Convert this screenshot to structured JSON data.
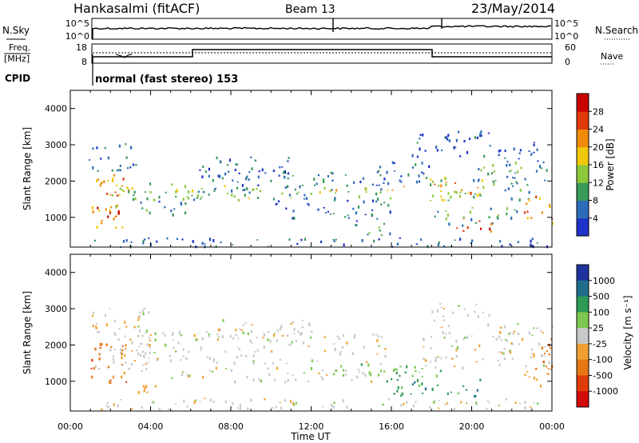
{
  "header": {
    "station": "Hankasalmi (fitACF)",
    "beam": "Beam 13",
    "date": "23/May/2014"
  },
  "top_panels": {
    "nsky_label": "N.Sky",
    "nsky_ticks": [
      "10^5",
      "10^0"
    ],
    "nsearch_label": "N.Search",
    "nsearch_ticks": [
      "10^5",
      "10^0"
    ],
    "freq_label_1": "Freq.",
    "freq_label_2": "[MHz]",
    "freq_ticks": [
      "18",
      "8"
    ],
    "nave_label": "Nave",
    "nave_ticks": [
      "60",
      "0"
    ],
    "cpid_label": "CPID",
    "cpid_text": "normal (fast stereo) 153"
  },
  "colors": {
    "power": [
      "#1e32c8",
      "#2e6bb8",
      "#3a9a5a",
      "#8cc83c",
      "#f0c80a",
      "#f08c0a",
      "#e03a0a",
      "#c80000"
    ],
    "velocity": [
      "#1e32a0",
      "#1f6e8c",
      "#2e9a54",
      "#7cc850",
      "#c8c8c8",
      "#f0a030",
      "#e87814",
      "#e03c0a",
      "#d20a0a"
    ]
  },
  "chart_data": [
    {
      "type": "heatmap",
      "name": "power",
      "ylabel": "Slant Range [km]",
      "xlabel": "",
      "x_ticks": [
        "00:00",
        "04:00",
        "08:00",
        "12:00",
        "16:00",
        "20:00",
        "00:00"
      ],
      "y_ticks": [
        1000,
        2000,
        3000,
        4000
      ],
      "ylim": [
        180,
        4500
      ],
      "xlim_hours": [
        0,
        24
      ],
      "colorbar_label": "Power [dB]",
      "colorbar_ticks": [
        4,
        8,
        12,
        16,
        20,
        24,
        28
      ],
      "colorbar_range": [
        0,
        32
      ],
      "regions": [
        {
          "t": [
            1.0,
            2.6
          ],
          "r": [
            700,
            2200
          ],
          "v": 20
        },
        {
          "t": [
            1.2,
            2.4
          ],
          "r": [
            800,
            1300
          ],
          "v": 27
        },
        {
          "t": [
            1.6,
            3.2
          ],
          "r": [
            1600,
            2100
          ],
          "v": 22
        },
        {
          "t": [
            2.0,
            6.0
          ],
          "r": [
            1500,
            2000
          ],
          "v": 14
        },
        {
          "t": [
            0.9,
            3.5
          ],
          "r": [
            2300,
            3100
          ],
          "v": 6
        },
        {
          "t": [
            3.0,
            5.8
          ],
          "r": [
            1100,
            1600
          ],
          "v": 8
        },
        {
          "t": [
            5.5,
            9.5
          ],
          "r": [
            1500,
            1900
          ],
          "v": 13
        },
        {
          "t": [
            6.0,
            16.5
          ],
          "r": [
            1500,
            1750
          ],
          "v": 11
        },
        {
          "t": [
            7.0,
            16.0
          ],
          "r": [
            1750,
            2300
          ],
          "v": 7
        },
        {
          "t": [
            6.0,
            11.0
          ],
          "r": [
            2100,
            2700
          ],
          "v": 5
        },
        {
          "t": [
            12.0,
            17.0
          ],
          "r": [
            1700,
            1900
          ],
          "v": 19
        },
        {
          "t": [
            10.0,
            16.0
          ],
          "r": [
            1000,
            1500
          ],
          "v": 6
        },
        {
          "t": [
            14.0,
            16.0
          ],
          "r": [
            500,
            1000
          ],
          "v": 8
        },
        {
          "t": [
            15.0,
            18.0
          ],
          "r": [
            2000,
            2600
          ],
          "v": 5
        },
        {
          "t": [
            17.5,
            20.5
          ],
          "r": [
            1400,
            2200
          ],
          "v": 15
        },
        {
          "t": [
            18.0,
            20.5
          ],
          "r": [
            1700,
            2000
          ],
          "v": 21
        },
        {
          "t": [
            18.0,
            22.5
          ],
          "r": [
            800,
            1300
          ],
          "v": 10
        },
        {
          "t": [
            19.0,
            21.0
          ],
          "r": [
            600,
            1000
          ],
          "v": 24
        },
        {
          "t": [
            20.0,
            23.8
          ],
          "r": [
            1500,
            2600
          ],
          "v": 9
        },
        {
          "t": [
            22.5,
            24.0
          ],
          "r": [
            800,
            1600
          ],
          "v": 24
        },
        {
          "t": [
            21.0,
            23.5
          ],
          "r": [
            2500,
            3100
          ],
          "v": 5
        },
        {
          "t": [
            17.0,
            21.5
          ],
          "r": [
            2700,
            3400
          ],
          "v": 4
        },
        {
          "t": [
            1.0,
            24.0
          ],
          "r": [
            200,
            450
          ],
          "v": 5
        }
      ]
    },
    {
      "type": "heatmap",
      "name": "velocity",
      "ylabel": "Slant Range [km]",
      "xlabel": "Time UT",
      "x_ticks": [
        "00:00",
        "04:00",
        "08:00",
        "12:00",
        "16:00",
        "20:00",
        "00:00"
      ],
      "y_ticks": [
        1000,
        2000,
        3000,
        4000
      ],
      "ylim": [
        180,
        4500
      ],
      "xlim_hours": [
        0,
        24
      ],
      "colorbar_label": "Velocity [m s⁻¹]",
      "colorbar_ticks": [
        "1000",
        "500",
        "100",
        "25",
        "-25",
        "-100",
        "-500",
        "-1000"
      ],
      "regions": [
        {
          "t": [
            1.0,
            4.0
          ],
          "r": [
            1200,
            3100
          ],
          "v": 4
        },
        {
          "t": [
            1.0,
            2.8
          ],
          "r": [
            800,
            2100
          ],
          "v": 6
        },
        {
          "t": [
            2.5,
            4.5
          ],
          "r": [
            700,
            1000
          ],
          "v": 5
        },
        {
          "t": [
            3.0,
            16.0
          ],
          "r": [
            1500,
            2400
          ],
          "v": 4
        },
        {
          "t": [
            5.0,
            15.0
          ],
          "r": [
            1000,
            1400
          ],
          "v": 4
        },
        {
          "t": [
            7.0,
            12.0
          ],
          "r": [
            2300,
            2800
          ],
          "v": 4
        },
        {
          "t": [
            13.0,
            16.5
          ],
          "r": [
            1100,
            1500
          ],
          "v": 3
        },
        {
          "t": [
            15.5,
            20.5
          ],
          "r": [
            600,
            1100
          ],
          "v": 2
        },
        {
          "t": [
            16.0,
            19.0
          ],
          "r": [
            1100,
            1500
          ],
          "v": 3
        },
        {
          "t": [
            17.5,
            24.0
          ],
          "r": [
            1400,
            2600
          ],
          "v": 4
        },
        {
          "t": [
            22.5,
            24.0
          ],
          "r": [
            1300,
            2200
          ],
          "v": 6
        },
        {
          "t": [
            22.6,
            23.8
          ],
          "r": [
            900,
            1500
          ],
          "v": 5
        },
        {
          "t": [
            18.0,
            21.0
          ],
          "r": [
            2700,
            3200
          ],
          "v": 4
        },
        {
          "t": [
            1.0,
            24.0
          ],
          "r": [
            250,
            550
          ],
          "v": 4
        }
      ]
    }
  ]
}
